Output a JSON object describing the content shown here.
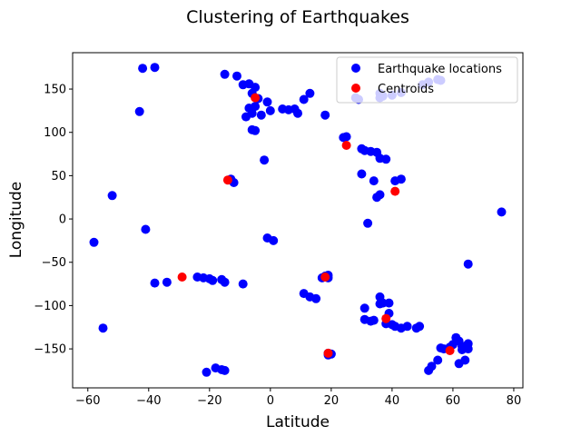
{
  "chart_data": {
    "type": "scatter",
    "title": "Clustering of Earthquakes",
    "xlabel": "Latitude",
    "ylabel": "Longitude",
    "xlim": [
      -65,
      83
    ],
    "ylim": [
      -195,
      192
    ],
    "xticks": [
      -60,
      -40,
      -20,
      0,
      20,
      40,
      60,
      80
    ],
    "yticks": [
      -150,
      -100,
      -50,
      0,
      50,
      100,
      150
    ],
    "grid": false,
    "legend_position": "top-right",
    "series": [
      {
        "name": "Earthquake locations",
        "color": "#0000ff",
        "points": [
          [
            -42,
            174
          ],
          [
            -38,
            175
          ],
          [
            -43,
            124
          ],
          [
            -52,
            27
          ],
          [
            -58,
            -27
          ],
          [
            -55,
            -126
          ],
          [
            -41,
            -12
          ],
          [
            -38,
            -74
          ],
          [
            -34,
            -73
          ],
          [
            -24,
            -67
          ],
          [
            -22,
            -68
          ],
          [
            -20,
            -69
          ],
          [
            -19,
            -71
          ],
          [
            -16,
            -70
          ],
          [
            -15,
            -73
          ],
          [
            -9,
            -75
          ],
          [
            -21,
            -177
          ],
          [
            -18,
            -172
          ],
          [
            -16,
            -174
          ],
          [
            -15,
            -175
          ],
          [
            -15,
            167
          ],
          [
            -11,
            165
          ],
          [
            -9,
            155
          ],
          [
            -7,
            156
          ],
          [
            -5,
            152
          ],
          [
            -6,
            145
          ],
          [
            -4,
            139
          ],
          [
            -7,
            128
          ],
          [
            -5,
            130
          ],
          [
            -8,
            118
          ],
          [
            -6,
            122
          ],
          [
            -6,
            103
          ],
          [
            -5,
            102
          ],
          [
            -3,
            120
          ],
          [
            -1,
            135
          ],
          [
            0,
            125
          ],
          [
            -2,
            68
          ],
          [
            -1,
            -22
          ],
          [
            1,
            -25
          ],
          [
            -13,
            46
          ],
          [
            -12,
            42
          ],
          [
            4,
            127
          ],
          [
            6,
            126
          ],
          [
            8,
            127
          ],
          [
            9,
            122
          ],
          [
            11,
            138
          ],
          [
            13,
            145
          ],
          [
            18,
            120
          ],
          [
            11,
            -86
          ],
          [
            13,
            -90
          ],
          [
            15,
            -92
          ],
          [
            17,
            -68
          ],
          [
            18,
            -66
          ],
          [
            19,
            -65
          ],
          [
            19,
            -68
          ],
          [
            19,
            -155
          ],
          [
            20,
            -156
          ],
          [
            19,
            -157
          ],
          [
            24,
            94
          ],
          [
            25,
            95
          ],
          [
            28,
            140
          ],
          [
            29,
            138
          ],
          [
            30,
            81
          ],
          [
            31,
            79
          ],
          [
            30,
            52
          ],
          [
            33,
            78
          ],
          [
            35,
            77
          ],
          [
            36,
            70
          ],
          [
            38,
            69
          ],
          [
            34,
            44
          ],
          [
            36,
            28
          ],
          [
            35,
            25
          ],
          [
            32,
            -5
          ],
          [
            41,
            44
          ],
          [
            43,
            46
          ],
          [
            36,
            140
          ],
          [
            37,
            142
          ],
          [
            36,
            145
          ],
          [
            40,
            143
          ],
          [
            43,
            146
          ],
          [
            50,
            155
          ],
          [
            52,
            158
          ],
          [
            55,
            161
          ],
          [
            56,
            160
          ],
          [
            31,
            -103
          ],
          [
            31,
            -116
          ],
          [
            33,
            -118
          ],
          [
            34,
            -117
          ],
          [
            36,
            -90
          ],
          [
            36,
            -98
          ],
          [
            37,
            -97
          ],
          [
            39,
            -97
          ],
          [
            38,
            -121
          ],
          [
            39,
            -109
          ],
          [
            40,
            -122
          ],
          [
            41,
            -124
          ],
          [
            43,
            -126
          ],
          [
            45,
            -124
          ],
          [
            48,
            -126
          ],
          [
            49,
            -124
          ],
          [
            52,
            -175
          ],
          [
            53,
            -170
          ],
          [
            55,
            -163
          ],
          [
            56,
            -149
          ],
          [
            57,
            -150
          ],
          [
            59,
            -148
          ],
          [
            60,
            -145
          ],
          [
            61,
            -137
          ],
          [
            62,
            -141
          ],
          [
            63,
            -151
          ],
          [
            63,
            -147
          ],
          [
            65,
            -144
          ],
          [
            64,
            -163
          ],
          [
            62,
            -167
          ],
          [
            65,
            -150
          ],
          [
            65,
            -52
          ],
          [
            76,
            8
          ]
        ]
      },
      {
        "name": "Centroids",
        "color": "#ff0000",
        "points": [
          [
            -5,
            140
          ],
          [
            25,
            85
          ],
          [
            -14,
            45
          ],
          [
            41,
            32
          ],
          [
            -29,
            -67
          ],
          [
            18,
            -67
          ],
          [
            38,
            -115
          ],
          [
            19,
            -155
          ],
          [
            59,
            -152
          ]
        ]
      }
    ]
  }
}
